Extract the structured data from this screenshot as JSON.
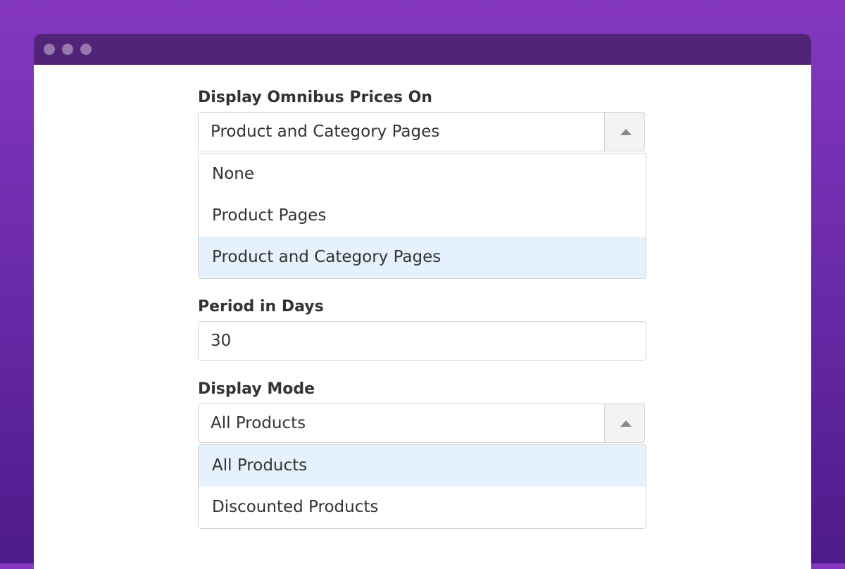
{
  "omnibus": {
    "label": "Display Omnibus Prices On",
    "value": "Product and Category Pages",
    "options": [
      "None",
      "Product Pages",
      "Product and Category Pages"
    ],
    "selected_index": 2
  },
  "period": {
    "label": "Period in Days",
    "value": "30"
  },
  "mode": {
    "label": "Display Mode",
    "value": "All Products",
    "options": [
      "All Products",
      "Discounted Products"
    ],
    "selected_index": 0
  },
  "colors": {
    "selected_option_bg": "#e5f2fd",
    "titlebar": "#522479"
  }
}
